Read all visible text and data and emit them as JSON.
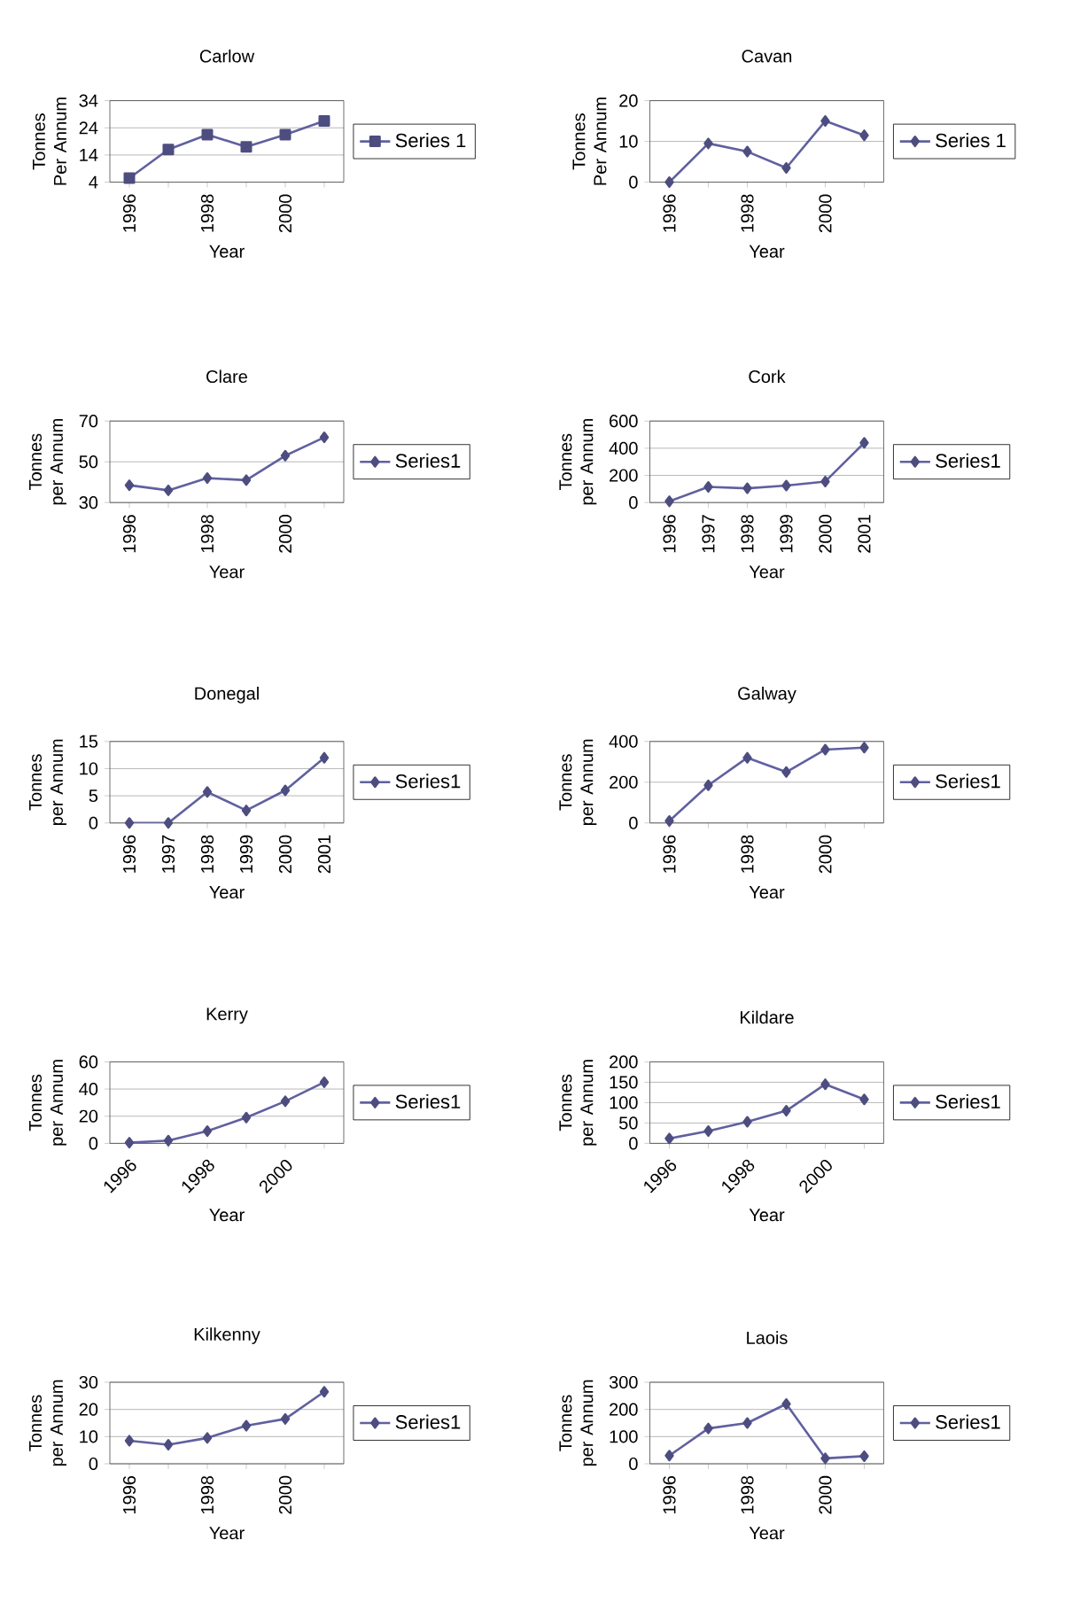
{
  "chart_data": [
    {
      "type": "line",
      "title": "Carlow",
      "xlabel": "Year",
      "ylabel": "Tonnes Per Annum",
      "categories": [
        "1996",
        null,
        "1998",
        null,
        "2000",
        null
      ],
      "ylim": [
        4,
        34
      ],
      "yticks": [
        4,
        14,
        24,
        34
      ],
      "grid": "y",
      "legend": "right",
      "marker": "square",
      "series": [
        {
          "name": "Series 1",
          "color": "#6060a0",
          "values": [
            5.5,
            16,
            21.5,
            17,
            21.5,
            26.5
          ]
        }
      ]
    },
    {
      "type": "line",
      "title": "Cavan",
      "xlabel": "Year",
      "ylabel": "Tonnes Per Annum",
      "categories": [
        "1996",
        null,
        "1998",
        null,
        "2000",
        null
      ],
      "ylim": [
        0,
        20
      ],
      "yticks": [
        0,
        10,
        20
      ],
      "grid": "y",
      "legend": "right",
      "marker": "diamond",
      "series": [
        {
          "name": "Series 1",
          "color": "#6060a0",
          "values": [
            0,
            9.5,
            7.5,
            3.5,
            15,
            11.5
          ]
        }
      ]
    },
    {
      "type": "line",
      "title": "Clare",
      "xlabel": "Year",
      "ylabel": "Tonnes per Annum",
      "categories": [
        "1996",
        null,
        "1998",
        null,
        "2000",
        null
      ],
      "ylim": [
        30,
        70
      ],
      "yticks": [
        30,
        50,
        70
      ],
      "grid": "y",
      "legend": "right",
      "marker": "diamond",
      "series": [
        {
          "name": "Series1",
          "color": "#6060a0",
          "values": [
            38.5,
            36,
            42,
            41,
            53,
            62
          ]
        }
      ]
    },
    {
      "type": "line",
      "title": "Cork",
      "xlabel": "Year",
      "ylabel": "Tonnes per Annum",
      "categories": [
        "1996",
        "1997",
        "1998",
        "1999",
        "2000",
        "2001"
      ],
      "ylim": [
        0,
        600
      ],
      "yticks": [
        0,
        200,
        400,
        600
      ],
      "grid": "y",
      "legend": "right",
      "marker": "diamond",
      "series": [
        {
          "name": "Series1",
          "color": "#6060a0",
          "values": [
            10,
            115,
            105,
            125,
            155,
            440
          ]
        }
      ]
    },
    {
      "type": "line",
      "title": "Donegal",
      "xlabel": "Year",
      "ylabel": "Tonnes per Annum",
      "categories": [
        "1996",
        "1997",
        "1998",
        "1999",
        "2000",
        "2001"
      ],
      "ylim": [
        0,
        15
      ],
      "yticks": [
        0,
        5,
        10,
        15
      ],
      "grid": "y",
      "legend": "right",
      "marker": "diamond",
      "series": [
        {
          "name": "Series1",
          "color": "#6060a0",
          "values": [
            0,
            0,
            5.7,
            2.3,
            6,
            12
          ]
        }
      ]
    },
    {
      "type": "line",
      "title": "Galway",
      "xlabel": "Year",
      "ylabel": "Tonnes per Annum",
      "categories": [
        "1996",
        null,
        "1998",
        null,
        "2000",
        null
      ],
      "ylim": [
        0,
        400
      ],
      "yticks": [
        0,
        200,
        400
      ],
      "grid": "y",
      "legend": "right",
      "marker": "diamond",
      "series": [
        {
          "name": "Series1",
          "color": "#6060a0",
          "values": [
            10,
            185,
            320,
            250,
            360,
            370
          ]
        }
      ]
    },
    {
      "type": "line",
      "title": "Kerry",
      "xlabel": "Year",
      "ylabel": "Tonnes per Annum",
      "categories": [
        "1996",
        null,
        "1998",
        null,
        "2000",
        null
      ],
      "ylim": [
        0,
        60
      ],
      "yticks": [
        0,
        20,
        40,
        60
      ],
      "grid": "y",
      "legend": "right",
      "marker": "diamond",
      "series": [
        {
          "name": "Series1",
          "color": "#6060a0",
          "values": [
            0.5,
            2,
            9,
            19,
            31,
            45
          ]
        }
      ]
    },
    {
      "type": "line",
      "title": "Kildare",
      "xlabel": "Year",
      "ylabel": "Tonnes per Annum",
      "categories": [
        "1996",
        null,
        "1998",
        null,
        "2000",
        null
      ],
      "ylim": [
        0,
        200
      ],
      "yticks": [
        0,
        50,
        100,
        150,
        200
      ],
      "grid": "y",
      "legend": "right",
      "marker": "diamond",
      "series": [
        {
          "name": "Series1",
          "color": "#6060a0",
          "values": [
            12,
            30,
            53,
            80,
            145,
            108
          ]
        }
      ]
    },
    {
      "type": "line",
      "title": "Kilkenny",
      "xlabel": "Year",
      "ylabel": "Tonnes per Annum",
      "categories": [
        "1996",
        null,
        "1998",
        null,
        "2000",
        null
      ],
      "ylim": [
        0,
        30
      ],
      "yticks": [
        0,
        10,
        20,
        30
      ],
      "grid": "y",
      "legend": "right",
      "marker": "diamond",
      "series": [
        {
          "name": "Series1",
          "color": "#6060a0",
          "values": [
            8.5,
            7,
            9.5,
            14,
            16.5,
            26.5
          ]
        }
      ]
    },
    {
      "type": "line",
      "title": "Laois",
      "xlabel": "Year",
      "ylabel": "Tonnes per Annum",
      "categories": [
        "1996",
        null,
        "1998",
        null,
        "2000",
        null
      ],
      "ylim": [
        0,
        300
      ],
      "yticks": [
        0,
        100,
        200,
        300
      ],
      "grid": "y",
      "legend": "right",
      "marker": "diamond",
      "series": [
        {
          "name": "Series1",
          "color": "#6060a0",
          "values": [
            30,
            130,
            150,
            220,
            20,
            28
          ]
        }
      ]
    }
  ]
}
